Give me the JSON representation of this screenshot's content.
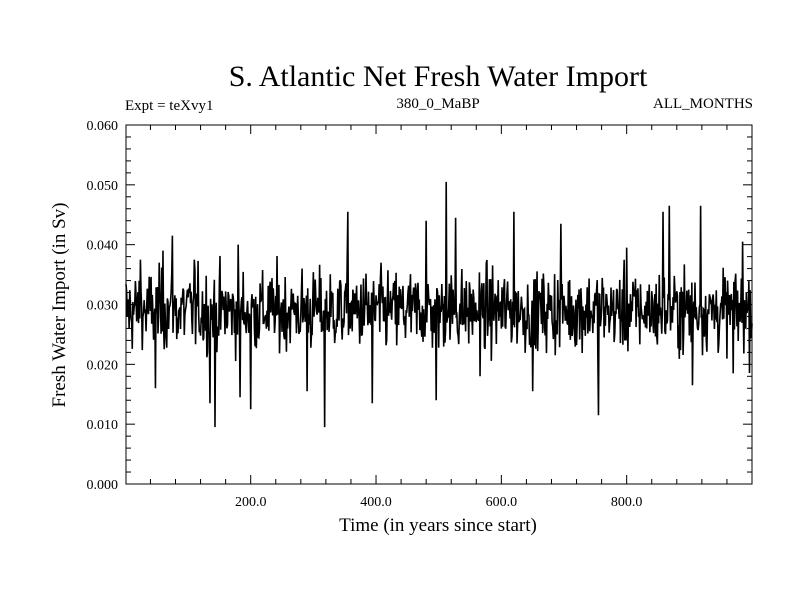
{
  "chart_data": {
    "type": "line",
    "title": "S. Atlantic Net Fresh Water Import",
    "subtitle_left": "Expt = teXvy1",
    "subtitle_center": "380_0_MaBP",
    "subtitle_right": "ALL_MONTHS",
    "xlabel": "Time (in years since start)",
    "ylabel": "Fresh Water Import (in Sv)",
    "xlim": [
      1,
      1000
    ],
    "ylim": [
      0.0,
      0.06
    ],
    "x_ticks": [
      200,
      400,
      600,
      800
    ],
    "x_tick_labels": [
      "200.0",
      "400.0",
      "600.0",
      "800.0"
    ],
    "y_ticks": [
      0.0,
      0.01,
      0.02,
      0.03,
      0.04,
      0.05,
      0.06
    ],
    "y_tick_labels": [
      "0.000",
      "0.010",
      "0.020",
      "0.030",
      "0.040",
      "0.050",
      "0.060"
    ],
    "series": [
      {
        "name": "Net fresh water import",
        "color": "#000000",
        "mean": 0.029,
        "amplitude": 0.0055,
        "n_points": 1000,
        "peaks": [
          {
            "x": 24,
            "y": 0.0375
          },
          {
            "x": 48,
            "y": 0.016
          },
          {
            "x": 60,
            "y": 0.039
          },
          {
            "x": 75,
            "y": 0.0415
          },
          {
            "x": 110,
            "y": 0.0375
          },
          {
            "x": 135,
            "y": 0.0135
          },
          {
            "x": 143,
            "y": 0.0095
          },
          {
            "x": 180,
            "y": 0.04
          },
          {
            "x": 183,
            "y": 0.0145
          },
          {
            "x": 200,
            "y": 0.0125
          },
          {
            "x": 290,
            "y": 0.0155
          },
          {
            "x": 318,
            "y": 0.0095
          },
          {
            "x": 355,
            "y": 0.0455
          },
          {
            "x": 394,
            "y": 0.0135
          },
          {
            "x": 480,
            "y": 0.044
          },
          {
            "x": 496,
            "y": 0.014
          },
          {
            "x": 512,
            "y": 0.0505
          },
          {
            "x": 527,
            "y": 0.0445
          },
          {
            "x": 566,
            "y": 0.018
          },
          {
            "x": 620,
            "y": 0.0455
          },
          {
            "x": 650,
            "y": 0.0155
          },
          {
            "x": 695,
            "y": 0.0435
          },
          {
            "x": 755,
            "y": 0.0115
          },
          {
            "x": 800,
            "y": 0.0395
          },
          {
            "x": 858,
            "y": 0.0455
          },
          {
            "x": 868,
            "y": 0.0465
          },
          {
            "x": 905,
            "y": 0.0165
          },
          {
            "x": 918,
            "y": 0.0465
          },
          {
            "x": 970,
            "y": 0.0185
          },
          {
            "x": 985,
            "y": 0.0405
          }
        ]
      }
    ]
  }
}
